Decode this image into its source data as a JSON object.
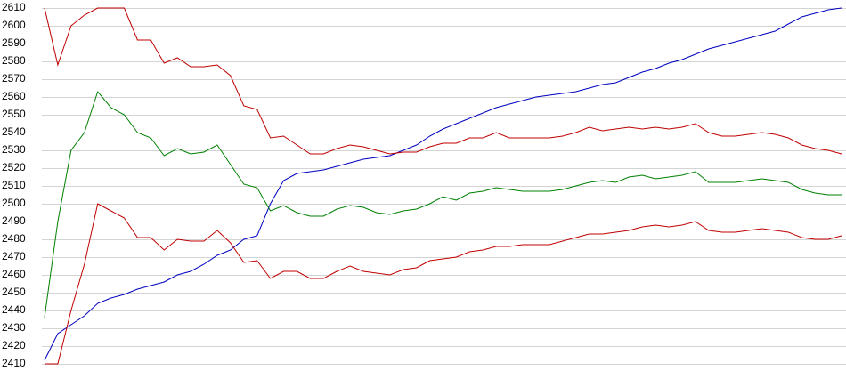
{
  "chart_data": {
    "type": "line",
    "categories": [
      null,
      null,
      null,
      null,
      null,
      null,
      null,
      null,
      null,
      null,
      null,
      null,
      null,
      null,
      null,
      null,
      null,
      null,
      null,
      null,
      null,
      null,
      null,
      null,
      null,
      null,
      null,
      null,
      null,
      null,
      null,
      null,
      null,
      null,
      null,
      null,
      null,
      null,
      null,
      null,
      null,
      null,
      null,
      null,
      null,
      null,
      null,
      null,
      null,
      null,
      null,
      null,
      null,
      null,
      null,
      null,
      null,
      null,
      null,
      null,
      null
    ],
    "series": [
      {
        "color": "#0000c0",
        "values": [
          2412,
          2427,
          2432,
          2437,
          2444,
          2447,
          2449,
          2452,
          2454,
          2456,
          2460,
          2462,
          2466,
          2471,
          2474,
          2480,
          2482,
          2500,
          2513,
          2517,
          2518,
          2519,
          2521,
          2523,
          2525,
          2526,
          2527,
          2530,
          2533,
          2538,
          2542,
          2545,
          2548,
          2551,
          2554,
          2556,
          2558,
          2560,
          2561,
          2562,
          2563,
          2565,
          2567,
          2568,
          2571,
          2574,
          2576,
          2579,
          2581,
          2584,
          2587,
          2589,
          2591,
          2593,
          2595,
          2597,
          2601,
          2605,
          2607,
          2609,
          2610
        ]
      },
      {
        "color": "#008000",
        "values": [
          2436,
          2490,
          2530,
          2540,
          2563,
          2554,
          2550,
          2540,
          2537,
          2527,
          2531,
          2528,
          2529,
          2533,
          2522,
          2511,
          2509,
          2496,
          2499,
          2495,
          2493,
          2493,
          2497,
          2499,
          2498,
          2495,
          2494,
          2496,
          2497,
          2500,
          2504,
          2502,
          2506,
          2507,
          2509,
          2508,
          2507,
          2507,
          2507,
          2508,
          2510,
          2512,
          2513,
          2512,
          2515,
          2516,
          2514,
          2515,
          2516,
          2518,
          2512,
          2512,
          2512,
          2513,
          2514,
          2513,
          2512,
          2508,
          2506,
          2505,
          2505
        ]
      },
      {
        "color": "#c00000",
        "values": [
          2610,
          2578,
          2600,
          2606,
          2610,
          2610,
          2610,
          2592,
          2592,
          2579,
          2582,
          2577,
          2577,
          2578,
          2572,
          2555,
          2553,
          2537,
          2538,
          2533,
          2528,
          2528,
          2531,
          2533,
          2532,
          2530,
          2528,
          2529,
          2529,
          2532,
          2534,
          2534,
          2537,
          2537,
          2540,
          2537,
          2537,
          2537,
          2537,
          2538,
          2540,
          2543,
          2541,
          2542,
          2543,
          2542,
          2543,
          2542,
          2543,
          2545,
          2540,
          2538,
          2538,
          2539,
          2540,
          2539,
          2537,
          2533,
          2531,
          2530,
          2528
        ]
      },
      {
        "color": "#c00000",
        "values": [
          2410,
          2410,
          2440,
          2466,
          2500,
          2496,
          2492,
          2481,
          2481,
          2474,
          2480,
          2479,
          2479,
          2485,
          2478,
          2467,
          2468,
          2458,
          2462,
          2462,
          2458,
          2458,
          2462,
          2465,
          2462,
          2461,
          2460,
          2463,
          2464,
          2468,
          2469,
          2470,
          2473,
          2474,
          2476,
          2476,
          2477,
          2477,
          2477,
          2479,
          2481,
          2483,
          2483,
          2484,
          2485,
          2487,
          2488,
          2487,
          2488,
          2490,
          2485,
          2484,
          2484,
          2485,
          2486,
          2485,
          2484,
          2481,
          2480,
          2480,
          2482
        ]
      }
    ],
    "ylim": [
      2405,
      2614.5
    ],
    "yticks": [
      2410,
      2420,
      2430,
      2440,
      2450,
      2460,
      2470,
      2480,
      2490,
      2500,
      2510,
      2520,
      2530,
      2540,
      2550,
      2560,
      2570,
      2580,
      2590,
      2600,
      2610
    ],
    "grid": true
  }
}
